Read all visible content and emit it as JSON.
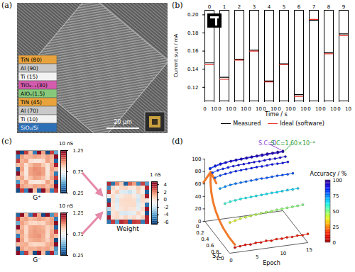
{
  "chart_data": [
    {
      "type": "image",
      "panel": "(a)",
      "layers": [
        {
          "label": "TiN (80)",
          "color": "#e8a33c"
        },
        {
          "label": "Al (90)",
          "color": "#c9c9c9"
        },
        {
          "label": "Ti (15)",
          "color": "#f2f2f2"
        },
        {
          "label": "TiO₂₋ₓ(30)",
          "color": "#d45cae"
        },
        {
          "label": "AlOₓ(1.5)",
          "color": "#86c97a"
        },
        {
          "label": "TiN (45)",
          "color": "#e8a33c"
        },
        {
          "label": "Al (70)",
          "color": "#c9c9c9"
        },
        {
          "label": "Ti (10)",
          "color": "#f2f2f2"
        },
        {
          "label": "SiO₂/Si",
          "color": "#2d6fb7"
        }
      ],
      "scale_bar": "20 μm"
    },
    {
      "type": "line",
      "panel": "(b)",
      "categories": [
        "0",
        "1",
        "2",
        "3",
        "4",
        "5",
        "6",
        "7",
        "8",
        "9"
      ],
      "xlim": [
        0,
        10
      ],
      "xticks": [
        0,
        10
      ],
      "xlabel": "Time / s",
      "ylabel": "Current sum / mA",
      "ylim": [
        0.105,
        0.205
      ],
      "yticks": [
        0.12,
        0.14,
        0.16,
        0.18,
        {
          "value": 0.2,
          "label": "0.20"
        }
      ],
      "series": [
        {
          "name": "Measured",
          "color": "#000000",
          "values": [
            0.147,
            0.131,
            0.151,
            0.161,
            0.127,
            0.146,
            0.112,
            0.194,
            0.158,
            0.179
          ]
        },
        {
          "name": "Ideal (software)",
          "color": "#e8302a",
          "values": [
            0.145,
            0.129,
            0.15,
            0.16,
            0.126,
            0.145,
            0.11,
            0.195,
            0.157,
            0.177
          ]
        }
      ],
      "legend": "bottom"
    },
    {
      "type": "heatmap",
      "panel": "(c)",
      "maps": [
        {
          "label": "G⁺",
          "unit": "10 nS",
          "cbar_lim": [
            0.25,
            1.25
          ],
          "cbar_ticks": [
            1.25,
            0.75,
            0.25
          ],
          "cells": [
            [
              1.2,
              0.3,
              1.1,
              0.9,
              0.4,
              1.2,
              0.95,
              0.3,
              1.1,
              0.5
            ],
            [
              0.4,
              0.95,
              0.9,
              0.92,
              0.95,
              0.93,
              0.9,
              0.95,
              0.92,
              1.2
            ],
            [
              1.1,
              0.92,
              0.95,
              0.82,
              0.8,
              0.8,
              0.83,
              0.95,
              0.9,
              0.35
            ],
            [
              0.9,
              0.93,
              0.82,
              0.9,
              0.95,
              0.95,
              0.88,
              0.82,
              0.93,
              1.15
            ],
            [
              0.35,
              0.95,
              0.8,
              0.95,
              0.98,
              0.97,
              0.95,
              0.8,
              0.95,
              0.9
            ],
            [
              1.2,
              0.9,
              0.8,
              0.95,
              0.97,
              0.98,
              0.95,
              0.81,
              0.92,
              0.4
            ],
            [
              0.9,
              0.94,
              0.83,
              0.9,
              0.95,
              0.94,
              0.9,
              0.83,
              0.95,
              1.1
            ],
            [
              0.45,
              0.9,
              0.95,
              0.82,
              0.8,
              0.8,
              0.83,
              0.95,
              0.9,
              0.3
            ],
            [
              1.15,
              0.95,
              0.92,
              0.9,
              0.95,
              0.93,
              0.95,
              0.9,
              0.94,
              1.2
            ],
            [
              0.3,
              1.1,
              0.4,
              1.25,
              0.9,
              0.35,
              1.2,
              0.95,
              0.4,
              1.1
            ]
          ]
        },
        {
          "label": "G⁻",
          "unit": "10 nS",
          "cbar_lim": [
            0.25,
            1.25
          ],
          "cbar_ticks": [
            1.25,
            0.75,
            0.25
          ],
          "cells": [
            [
              0.35,
              1.2,
              0.9,
              0.4,
              1.15,
              0.95,
              0.3,
              1.2,
              0.45,
              1.0
            ],
            [
              1.1,
              0.93,
              0.95,
              0.9,
              0.92,
              0.95,
              0.93,
              0.9,
              0.95,
              0.4
            ],
            [
              0.5,
              0.95,
              0.9,
              0.85,
              0.84,
              0.86,
              0.85,
              0.92,
              0.95,
              1.2
            ],
            [
              1.2,
              0.92,
              0.85,
              0.93,
              0.95,
              0.94,
              0.92,
              0.86,
              0.9,
              0.35
            ],
            [
              0.9,
              0.95,
              0.84,
              0.94,
              0.96,
              0.95,
              0.94,
              0.85,
              0.93,
              1.1
            ],
            [
              0.4,
              0.93,
              0.86,
              0.95,
              0.96,
              0.97,
              0.93,
              0.84,
              0.95,
              0.9
            ],
            [
              1.15,
              0.95,
              0.85,
              0.92,
              0.94,
              0.95,
              0.92,
              0.86,
              0.93,
              0.3
            ],
            [
              0.9,
              0.92,
              0.93,
              0.86,
              0.84,
              0.85,
              0.86,
              0.92,
              0.95,
              1.2
            ],
            [
              0.3,
              0.95,
              0.9,
              0.93,
              0.92,
              0.95,
              0.93,
              0.95,
              0.9,
              0.45
            ],
            [
              1.2,
              0.4,
              1.1,
              0.9,
              0.3,
              1.2,
              0.9,
              0.35,
              1.15,
              0.5
            ]
          ]
        },
        {
          "label": "Weight",
          "unit": "1 nS",
          "cbar_lim": [
            -6.5,
            4.8
          ],
          "cbar_ticks": [
            4,
            2,
            0,
            -2,
            -4,
            -6
          ],
          "cells": [
            [
              3.5,
              -5,
              2,
              0.5,
              -5.5,
              2.5,
              1.5,
              -4.5,
              3,
              -4
            ],
            [
              -4.5,
              0.2,
              -0.5,
              0.2,
              0.3,
              -0.2,
              -0.3,
              0.5,
              -0.3,
              3.5
            ],
            [
              3,
              -0.3,
              0.5,
              -1.5,
              -1.6,
              -2,
              -1.2,
              0.3,
              -0.5,
              -5.5
            ],
            [
              -1,
              0.1,
              -1.3,
              -0.3,
              0,
              0.1,
              -0.4,
              -1.6,
              0.3,
              3.8
            ],
            [
              -5.5,
              0,
              -1.7,
              0.1,
              0.2,
              0.2,
              0.1,
              -1.8,
              0.2,
              -0.2
            ],
            [
              3.8,
              -0.3,
              -1.4,
              0,
              0.1,
              0.1,
              0.2,
              -1.5,
              -0.3,
              -5
            ],
            [
              -2.5,
              -0.1,
              -1.2,
              -0.2,
              0.1,
              -0.1,
              -0.2,
              -1.3,
              0.2,
              3.9
            ],
            [
              -4.5,
              -0.2,
              0.2,
              -1.6,
              -1.7,
              -1.5,
              -1.3,
              0.3,
              -0.5,
              -5.8
            ],
            [
              3.9,
              0,
              0.2,
              -0.3,
              0.3,
              -0.2,
              0.2,
              -0.5,
              0.4,
              3.6
            ],
            [
              -5,
              3.2,
              -4,
              3.5,
              3,
              -5.5,
              3.2,
              3,
              -4.8,
              3.6
            ]
          ]
        }
      ]
    },
    {
      "type": "line3d",
      "panel": "(d)",
      "x": [
        1,
        2,
        3,
        4,
        5,
        6,
        7,
        8,
        9,
        10,
        11,
        12,
        13,
        14,
        15
      ],
      "xlim": [
        0,
        15
      ],
      "xticks": [
        0,
        5,
        10,
        15
      ],
      "xlabel": "Epoch",
      "zlim": [
        0,
        1
      ],
      "zticks": [
        0,
        0.2,
        0.4,
        0.6,
        0.8,
        {
          "value": 1,
          "label": "1.0"
        }
      ],
      "zlabel": "S.C",
      "ylim": [
        0,
        100
      ],
      "yticks": [
        0,
        20,
        40,
        60,
        80,
        100
      ],
      "marker": "circle",
      "series": [
        {
          "z": 0,
          "values": [
            84,
            87,
            89,
            90,
            91,
            92,
            92.5,
            93,
            93.5,
            94,
            94.5,
            95,
            95,
            95.5,
            96
          ]
        },
        {
          "z": 0.00016,
          "values": [
            83,
            86,
            88,
            89.5,
            90.5,
            91,
            91.5,
            92,
            92.5,
            93,
            93,
            93.5,
            94,
            94,
            94.5
          ]
        },
        {
          "z": 0.1,
          "values": [
            82,
            84.5,
            86,
            87,
            88,
            88.5,
            89,
            89.5,
            90,
            90,
            90.5,
            91,
            91,
            91.5,
            92
          ]
        },
        {
          "z": 0.2,
          "values": [
            79,
            81.5,
            83,
            84,
            85,
            85.5,
            86,
            86.5,
            87,
            87,
            87.5,
            88,
            88,
            88,
            88.5
          ]
        },
        {
          "z": 0.4,
          "values": [
            72,
            74,
            75.5,
            76.5,
            77,
            77.5,
            78,
            78.5,
            79,
            79,
            79.5,
            80,
            80,
            80,
            80.5
          ]
        },
        {
          "z": 0.6,
          "values": [
            58,
            60,
            61,
            62,
            62.5,
            63,
            63.5,
            64,
            64.5,
            65,
            65,
            65.5,
            66,
            66,
            66.5
          ]
        },
        {
          "z": 0.8,
          "values": [
            38,
            40,
            42,
            43,
            44,
            45,
            46,
            46.5,
            47,
            48,
            48.5,
            49,
            49.5,
            50,
            50.5
          ]
        },
        {
          "z": 1,
          "values": [
            8,
            9,
            10,
            9.5,
            11,
            10.5,
            12,
            11,
            12.5,
            12,
            13,
            12.5,
            13.5,
            13,
            14
          ]
        }
      ],
      "annotations": [
        {
          "text": "S.C=0",
          "color": "#8b3fd9",
          "z": 0
        },
        {
          "text": "S.C=1.60×10⁻⁴",
          "color": "#1f9e3a",
          "z": 0.00016
        }
      ],
      "colorbar": {
        "label": "Accuracy / %",
        "lim": [
          0,
          100
        ],
        "ticks": [
          0,
          25,
          50,
          75,
          100
        ]
      }
    }
  ]
}
